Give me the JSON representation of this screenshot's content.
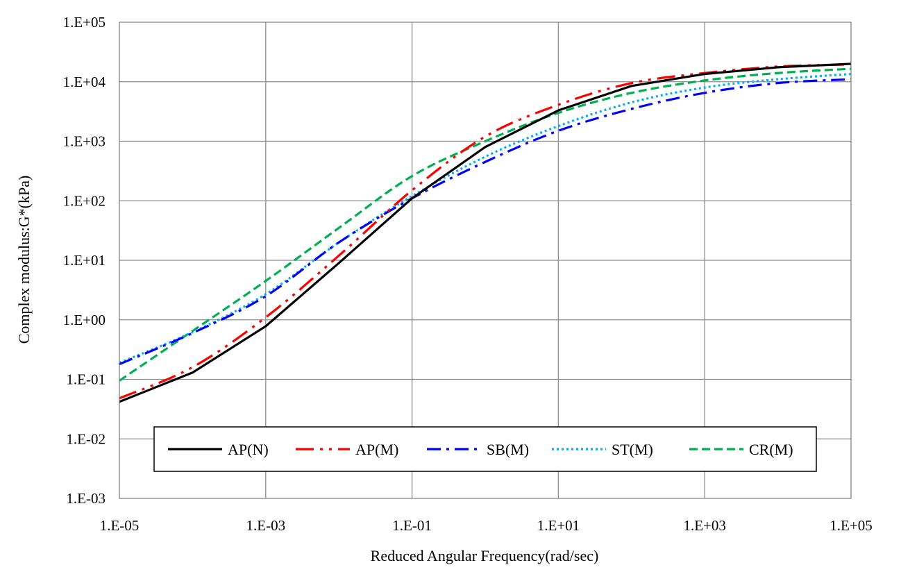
{
  "chart_data": {
    "type": "line",
    "title": "",
    "xlabel": "Reduced Angular Frequency(rad/sec)",
    "ylabel": "Complex modulus:G*(kPa)",
    "x_scale": "log",
    "y_scale": "log",
    "xlim": [
      1e-05,
      100000
    ],
    "ylim": [
      0.001,
      100000
    ],
    "x_ticks": [
      1e-05,
      0.001,
      0.1,
      10,
      1000,
      100000
    ],
    "x_tick_labels": [
      "1.E-05",
      "1.E-03",
      "1.E-01",
      "1.E+01",
      "1.E+03",
      "1.E+05"
    ],
    "y_ticks": [
      0.001,
      0.01,
      0.1,
      1,
      10,
      100,
      1000,
      10000,
      100000
    ],
    "y_tick_labels": [
      "1.E-03",
      "1.E-02",
      "1.E-01",
      "1.E+00",
      "1.E+01",
      "1.E+02",
      "1.E+03",
      "1.E+04",
      "1.E+05"
    ],
    "grid": true,
    "legend_position": "bottom-center",
    "series": [
      {
        "name": "AP(N)",
        "color": "#000000",
        "style": "solid",
        "x": [
          1e-05,
          0.0001,
          0.001,
          0.01,
          0.1,
          1,
          10,
          100,
          1000,
          10000,
          100000
        ],
        "y": [
          0.042,
          0.13,
          0.78,
          9,
          110,
          800,
          3300,
          8500,
          13500,
          17500,
          20000
        ]
      },
      {
        "name": "AP(M)",
        "color": "#ff0000",
        "style": "dashdotdot",
        "x": [
          1e-05,
          0.0001,
          0.001,
          0.01,
          0.1,
          1,
          10,
          100,
          1000,
          10000,
          100000
        ],
        "y": [
          0.048,
          0.16,
          1.1,
          12,
          150,
          1200,
          4100,
          9500,
          14000,
          18000,
          19500
        ]
      },
      {
        "name": "SB(M)",
        "color": "#0000ff",
        "style": "dashdot",
        "x": [
          1e-05,
          0.0001,
          0.001,
          0.01,
          0.1,
          1,
          10,
          100,
          1000,
          10000,
          100000
        ],
        "y": [
          0.18,
          0.6,
          2.5,
          20,
          110,
          450,
          1500,
          3500,
          6500,
          9500,
          11000
        ]
      },
      {
        "name": "ST(M)",
        "color": "#00b0f0",
        "style": "dotted",
        "x": [
          1e-05,
          0.0001,
          0.001,
          0.01,
          0.1,
          1,
          10,
          100,
          1000,
          10000,
          100000
        ],
        "y": [
          0.19,
          0.62,
          2.7,
          20,
          120,
          550,
          1800,
          4500,
          8000,
          11000,
          13500
        ]
      },
      {
        "name": "CR(M)",
        "color": "#00b050",
        "style": "dashed",
        "x": [
          1e-05,
          0.0001,
          0.001,
          0.01,
          0.1,
          1,
          10,
          100,
          1000,
          10000,
          100000
        ],
        "y": [
          0.095,
          0.65,
          4.5,
          35,
          260,
          1000,
          3000,
          6500,
          10500,
          14000,
          16500
        ]
      }
    ]
  }
}
